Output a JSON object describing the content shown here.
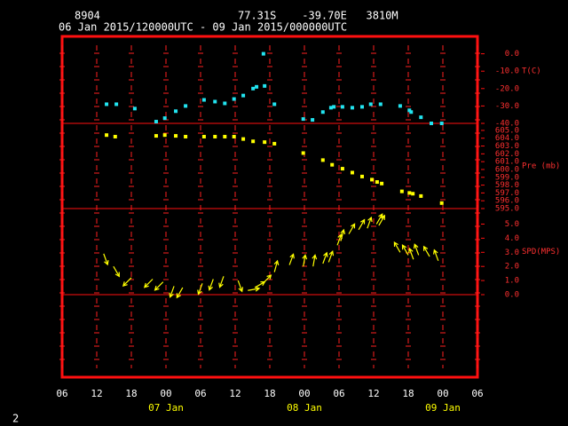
{
  "header": {
    "station": "8904",
    "location": "77.31S    -39.70E   3810M",
    "period": "06 Jan 2015/120000UTC - 09 Jan 2015/000000UTC",
    "page": "2"
  },
  "x_axis": {
    "xlim": [
      6,
      78
    ],
    "xticks": [
      {
        "value": 6,
        "label": "06"
      },
      12,
      18,
      {
        "value": 24,
        "label": "00"
      },
      {
        "value": 30,
        "label": "06"
      },
      {
        "value": 36,
        "label": "12"
      },
      {
        "value": 42,
        "label": "18"
      },
      {
        "value": 48,
        "label": "00"
      },
      {
        "value": 54,
        "label": "06"
      },
      {
        "value": 60,
        "label": "12"
      },
      {
        "value": 66,
        "label": "18"
      },
      {
        "value": 72,
        "label": "00"
      },
      {
        "value": 78,
        "label": "06"
      }
    ],
    "day_labels": [
      {
        "value": 24,
        "label": "07 Jan"
      },
      {
        "value": 48,
        "label": "08 Jan"
      },
      {
        "value": 72,
        "label": "09 Jan"
      }
    ]
  },
  "chart_data": [
    {
      "type": "scatter",
      "y_label": "T(C)",
      "color": "#22e4f0",
      "ylim": [
        -40,
        10
      ],
      "yticks": [
        {
          "value": 0,
          "label": "0.0"
        },
        {
          "value": -10,
          "label": "-10.0"
        },
        {
          "value": -20,
          "label": "-20.0"
        },
        {
          "value": -30,
          "label": "-30.0"
        },
        {
          "value": -40,
          "label": "-40.0"
        }
      ],
      "x": [
        13.7,
        15.4,
        18.6,
        22.3,
        23.8,
        25.7,
        27.4,
        30.6,
        32.5,
        34.2,
        35.8,
        37.4,
        39.1,
        39.7,
        41.1,
        40.9,
        42.8,
        47.8,
        49.4,
        51.2,
        52.6,
        53.1,
        54.6,
        56.3,
        58.0,
        59.5,
        61.2,
        64.6,
        66.2,
        66.5,
        68.2,
        70.0,
        71.8
      ],
      "values": [
        -29,
        -29,
        -31.5,
        -39,
        -37,
        -33,
        -30,
        -26.5,
        -27.5,
        -28.5,
        -26,
        -24,
        -20,
        -19,
        -18.5,
        0,
        -29,
        -37.5,
        -38,
        -33.5,
        -31,
        -30.5,
        -30.5,
        -31,
        -30.5,
        -29,
        -29,
        -30,
        -32.5,
        -33.5,
        -36.5,
        -40,
        -40
      ]
    },
    {
      "type": "scatter",
      "y_label": "Pre (mb)",
      "color": "#ffff00",
      "ylim": [
        595,
        605.9
      ],
      "yticks": [
        {
          "value": 605,
          "label": "605.0"
        },
        {
          "value": 604,
          "label": "604.0"
        },
        {
          "value": 603,
          "label": "603.0"
        },
        {
          "value": 602,
          "label": "602.0"
        },
        {
          "value": 601,
          "label": "601.0"
        },
        {
          "value": 600,
          "label": "600.0"
        },
        {
          "value": 599,
          "label": "599.0"
        },
        {
          "value": 598,
          "label": "598.0"
        },
        {
          "value": 597,
          "label": "597.0"
        },
        {
          "value": 596,
          "label": "596.0"
        },
        {
          "value": 595,
          "label": "595.0"
        }
      ],
      "x": [
        13.7,
        15.2,
        22.3,
        23.8,
        25.7,
        27.4,
        30.6,
        32.5,
        34.2,
        35.8,
        37.4,
        39.1,
        41.1,
        42.8,
        47.8,
        51.2,
        52.8,
        54.6,
        56.3,
        58.0,
        59.7,
        60.6,
        61.4,
        64.9,
        66.2,
        66.8,
        68.2,
        71.8
      ],
      "values": [
        604.4,
        604.2,
        604.3,
        604.4,
        604.3,
        604.2,
        604.2,
        604.2,
        604.2,
        604.2,
        603.9,
        603.6,
        603.5,
        603.3,
        602.1,
        601.2,
        600.6,
        600.1,
        599.6,
        599.1,
        598.7,
        598.4,
        598.2,
        597.2,
        597.0,
        596.9,
        596.6,
        595.7
      ]
    },
    {
      "type": "wind",
      "y_label": "SPD(MPS)",
      "color": "#ffff00",
      "ylim": [
        0,
        6.1
      ],
      "yticks": [
        {
          "value": 5,
          "label": "5.0"
        },
        {
          "value": 4,
          "label": "4.0"
        },
        {
          "value": 3,
          "label": "3.0"
        },
        {
          "value": 2,
          "label": "2.0"
        },
        {
          "value": 1,
          "label": "1.0"
        },
        {
          "value": 0,
          "label": "0.0"
        }
      ],
      "x": [
        13.2,
        14.9,
        18.0,
        21.7,
        23.5,
        25.4,
        26.9,
        30.3,
        32.2,
        34.0,
        36.5,
        38.2,
        39.4,
        40.8,
        42.8,
        45.4,
        47.8,
        49.5,
        51.2,
        52.2,
        53.7,
        54.3,
        55.7,
        57.4,
        58.9,
        60.5,
        60.9,
        64.6,
        66.0,
        66.9,
        67.8,
        69.7,
        71.2
      ],
      "values": [
        2.9,
        2.0,
        1.2,
        1.1,
        0.9,
        0.6,
        0.5,
        0.8,
        1.1,
        1.3,
        1.0,
        0.3,
        0.5,
        0.8,
        1.6,
        2.1,
        2.0,
        2.0,
        2.2,
        2.3,
        3.5,
        3.8,
        4.3,
        4.6,
        4.7,
        5.0,
        4.9,
        3.0,
        2.8,
        2.5,
        2.8,
        2.7,
        2.4
      ],
      "directions": [
        160,
        150,
        225,
        225,
        225,
        200,
        210,
        200,
        200,
        200,
        160,
        80,
        60,
        45,
        15,
        20,
        10,
        10,
        20,
        20,
        20,
        15,
        30,
        30,
        20,
        30,
        30,
        330,
        330,
        340,
        340,
        330,
        340
      ]
    }
  ]
}
